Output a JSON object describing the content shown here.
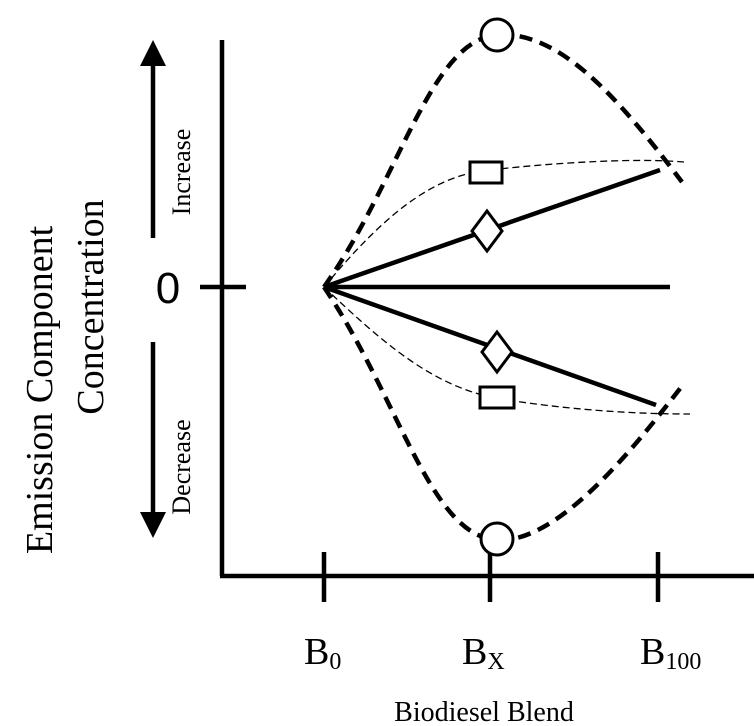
{
  "axes": {
    "y_title_line1": "Emission Component",
    "y_title_line2": "Concentration",
    "x_title": "Biodiesel Blend",
    "zero_label": "0",
    "increase_label": "Increase",
    "decrease_label": "Decrease"
  },
  "x_ticks": [
    {
      "base": "B",
      "sub": "0"
    },
    {
      "base": "B",
      "sub": "X"
    },
    {
      "base": "B",
      "sub": "100"
    }
  ],
  "legend_markers": {
    "circle": "circle-marker",
    "square": "square-marker",
    "diamond": "diamond-marker"
  }
}
